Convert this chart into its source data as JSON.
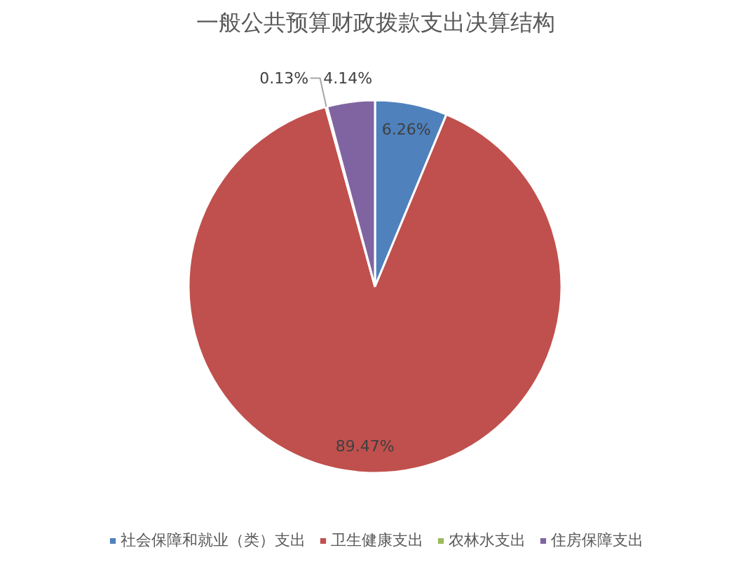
{
  "chart_data": {
    "type": "pie",
    "title": "一般公共预算财政拨款支出决算结构",
    "categories": [
      "社会保障和就业（类）支出",
      "卫生健康支出",
      "农林水支出",
      "住房保障支出"
    ],
    "values": [
      6.26,
      89.47,
      0.13,
      4.14
    ],
    "colors": [
      "#4f81bd",
      "#c0504d",
      "#9bbb59",
      "#8064a2"
    ],
    "value_labels": [
      "6.26%",
      "89.47%",
      "0.13%",
      "4.14%"
    ],
    "legend": "bottom"
  }
}
